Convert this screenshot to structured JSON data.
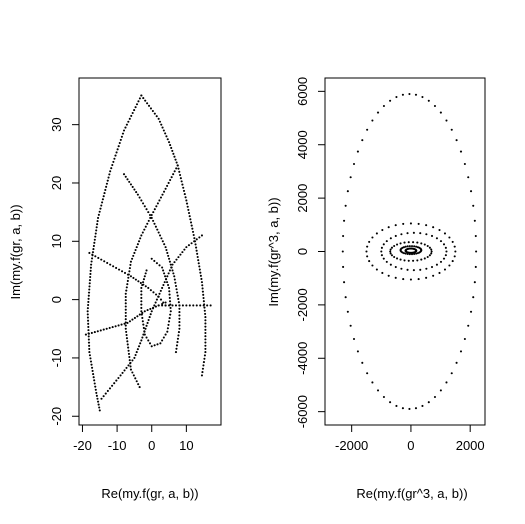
{
  "chart_data": [
    {
      "type": "scatter",
      "xlabel": "Re(my.f(gr, a, b))",
      "ylabel": "Im(my.f(gr, a, b))",
      "xlim": [
        -21,
        20
      ],
      "ylim": [
        -21.5,
        38
      ],
      "xticks": [
        -20,
        -10,
        0,
        10
      ],
      "yticks": [
        -20,
        -10,
        0,
        10,
        20,
        30
      ],
      "xtick_labels": [
        "-20",
        "-10",
        "0",
        "10"
      ],
      "ytick_labels": [
        "-20",
        "-10",
        "0",
        "10",
        "20",
        "30"
      ],
      "point_style": "small dots (pch='.')",
      "curves": [
        {
          "description": "outer left boundary",
          "points": [
            [
              -3,
              35
            ],
            [
              -8,
              29
            ],
            [
              -12,
              22
            ],
            [
              -15.5,
              14
            ],
            [
              -17.5,
              6
            ],
            [
              -18.5,
              -2
            ],
            [
              -18,
              -9
            ],
            [
              -16,
              -16
            ],
            [
              -15,
              -19
            ]
          ]
        },
        {
          "description": "outer right boundary",
          "points": [
            [
              -3,
              35
            ],
            [
              2,
              31
            ],
            [
              5,
              27
            ],
            [
              7.5,
              23
            ],
            [
              10,
              17
            ],
            [
              12.5,
              10
            ],
            [
              14.5,
              3
            ],
            [
              15.5,
              -3
            ],
            [
              15.5,
              -9
            ],
            [
              14.5,
              -13
            ]
          ]
        },
        {
          "description": "upper-left to right arc",
          "points": [
            [
              -8,
              21.5
            ],
            [
              -4,
              18
            ],
            [
              0,
              14
            ],
            [
              4,
              9
            ],
            [
              6.5,
              4
            ],
            [
              8,
              -1
            ],
            [
              8,
              -5
            ],
            [
              7,
              -9
            ]
          ]
        },
        {
          "description": "upper-right to left arc",
          "points": [
            [
              7.5,
              23
            ],
            [
              4,
              19
            ],
            [
              0,
              14.5
            ],
            [
              -3,
              11
            ],
            [
              -6,
              6.5
            ],
            [
              -7.5,
              1
            ],
            [
              -7.5,
              -5
            ],
            [
              -6,
              -12
            ],
            [
              -3.5,
              -15
            ]
          ]
        },
        {
          "description": "left crossing arc",
          "points": [
            [
              -18,
              8
            ],
            [
              -12,
              6
            ],
            [
              -6,
              4
            ],
            [
              -1,
              2
            ],
            [
              2,
              0.5
            ],
            [
              4,
              -1
            ]
          ]
        },
        {
          "description": "lower crossing arc",
          "points": [
            [
              -19,
              -6
            ],
            [
              -13,
              -5
            ],
            [
              -7,
              -4
            ],
            [
              -2,
              -2
            ],
            [
              2,
              -1
            ],
            [
              4,
              -0.5
            ]
          ]
        },
        {
          "description": "middle right arc",
          "points": [
            [
              14.5,
              11
            ],
            [
              10,
              9
            ],
            [
              6,
              6
            ],
            [
              3,
              2
            ],
            [
              0,
              -2
            ],
            [
              -3,
              -7
            ],
            [
              -5,
              -10
            ],
            [
              -9,
              -13
            ],
            [
              -14.5,
              -17
            ]
          ]
        },
        {
          "description": "inner ring",
          "points": [
            [
              0,
              7
            ],
            [
              3,
              5.5
            ],
            [
              5,
              2
            ],
            [
              5.5,
              -2
            ],
            [
              4.5,
              -5.5
            ],
            [
              2.5,
              -7.5
            ],
            [
              0,
              -8
            ],
            [
              -2,
              -6
            ],
            [
              -3,
              -2
            ],
            [
              -3,
              2
            ],
            [
              -1.5,
              5
            ]
          ]
        },
        {
          "description": "horizontal spoke",
          "points": [
            [
              2,
              -1
            ],
            [
              6,
              -1
            ],
            [
              10,
              -1
            ],
            [
              14,
              -1
            ],
            [
              17,
              -1
            ]
          ]
        }
      ]
    },
    {
      "type": "scatter",
      "xlabel": "Re(my.f(gr^3, a, b))",
      "ylabel": "Im(my.f(gr^3, a, b))",
      "xlim": [
        -2900,
        2500
      ],
      "ylim": [
        -6500,
        6500
      ],
      "xticks": [
        -2000,
        0,
        2000
      ],
      "yticks": [
        -6000,
        -4000,
        -2000,
        0,
        2000,
        4000,
        6000
      ],
      "xtick_labels": [
        "-2000",
        "0",
        "2000"
      ],
      "ytick_labels": [
        "-6000",
        "-4000",
        "-2000",
        "0",
        "2000",
        "4000",
        "6000"
      ],
      "point_style": "small dots (pch='.')",
      "curves": [
        {
          "description": "large outer ellipse",
          "center": [
            -50,
            0
          ],
          "rx": 2250,
          "ry": 5900,
          "n": 64
        },
        {
          "description": "medium ellipse",
          "center": [
            0,
            0
          ],
          "rx": 1500,
          "ry": 1050,
          "n": 36
        },
        {
          "description": "mid ellipse",
          "center": [
            100,
            0
          ],
          "rx": 1100,
          "ry": 700,
          "n": 32
        },
        {
          "description": "small ellipse",
          "center": [
            0,
            0
          ],
          "rx": 700,
          "ry": 350,
          "n": 30
        },
        {
          "description": "tiny ellipse",
          "center": [
            0,
            50
          ],
          "rx": 350,
          "ry": 150,
          "n": 30
        },
        {
          "description": "core cluster",
          "center": [
            0,
            30
          ],
          "rx": 180,
          "ry": 80,
          "n": 26
        }
      ]
    }
  ]
}
